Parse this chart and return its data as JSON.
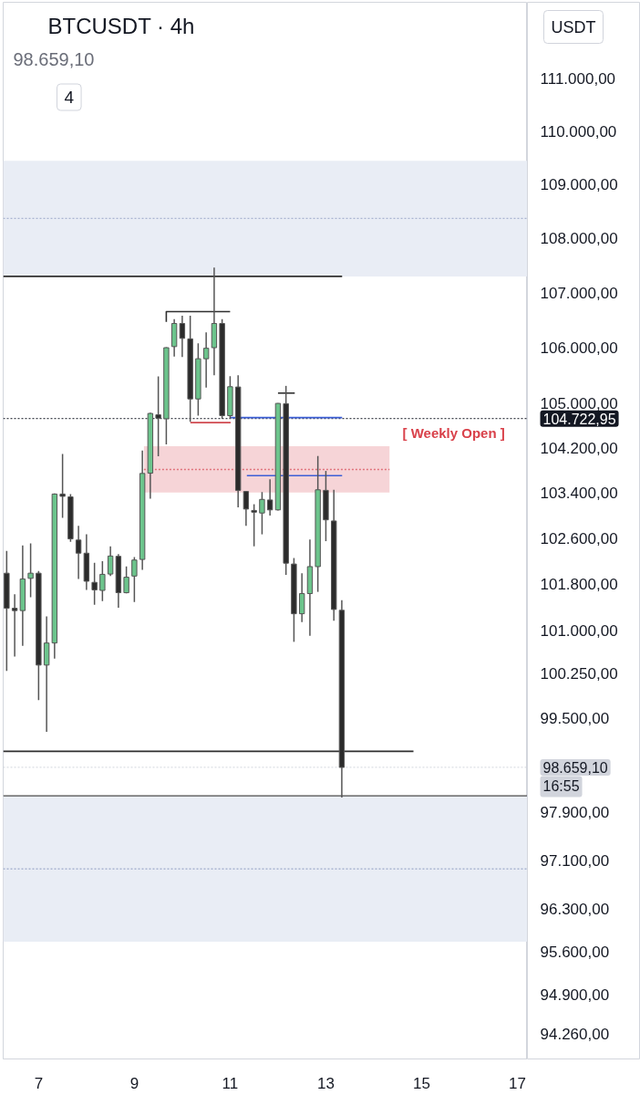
{
  "chart_data": {
    "type": "candlestick",
    "title": "BTCUSDT · 4h",
    "subtitle": "98.659,10",
    "x": [
      6.333,
      6.5,
      6.667,
      6.833,
      7,
      7.167,
      7.333,
      7.5,
      7.667,
      7.833,
      8,
      8.167,
      8.333,
      8.5,
      8.667,
      8.833,
      9,
      9.167,
      9.333,
      9.5,
      9.667,
      9.833,
      10,
      10.167,
      10.333,
      10.5,
      10.667,
      10.833,
      11,
      11.167,
      11.333,
      11.5,
      11.667,
      11.833,
      12,
      12.167,
      12.333,
      12.5,
      12.667,
      12.833,
      13,
      13.167,
      13.333
    ],
    "ohlc": [
      [
        101990,
        102380,
        100300,
        101380
      ],
      [
        101380,
        101625,
        100545,
        101340
      ],
      [
        101340,
        102475,
        100730,
        101890
      ],
      [
        101900,
        102510,
        101570,
        101990
      ],
      [
        101990,
        102030,
        99800,
        100400
      ],
      [
        100400,
        101240,
        99260,
        100780
      ],
      [
        100780,
        103390,
        100510,
        103380
      ],
      [
        103380,
        104090,
        102960,
        103340
      ],
      [
        103330,
        103380,
        102540,
        102590
      ],
      [
        102570,
        102820,
        101890,
        102340
      ],
      [
        102340,
        102670,
        101700,
        101850
      ],
      [
        101830,
        102170,
        101440,
        101700
      ],
      [
        101690,
        102200,
        101505,
        101970
      ],
      [
        101975,
        102460,
        101940,
        102290
      ],
      [
        102285,
        102325,
        101390,
        101650
      ],
      [
        101650,
        102110,
        101640,
        101920
      ],
      [
        101940,
        102270,
        101490,
        102220
      ],
      [
        102230,
        104150,
        102050,
        103745
      ],
      [
        103750,
        104830,
        103300,
        104815
      ],
      [
        104790,
        105480,
        104050,
        104730
      ],
      [
        104720,
        106010,
        104260,
        106000
      ],
      [
        106020,
        106520,
        105840,
        106440
      ],
      [
        106440,
        106580,
        105830,
        106170
      ],
      [
        106160,
        106580,
        104665,
        105075
      ],
      [
        105075,
        106080,
        104775,
        105800
      ],
      [
        105800,
        106280,
        105280,
        105990
      ],
      [
        106000,
        107460,
        105500,
        106440
      ],
      [
        106440,
        106520,
        104720,
        104775
      ],
      [
        104775,
        105485,
        104720,
        105295
      ],
      [
        105290,
        105500,
        103145,
        103445
      ],
      [
        103425,
        103430,
        102820,
        103115
      ],
      [
        103090,
        103200,
        102460,
        103060
      ],
      [
        103045,
        103415,
        102670,
        103285
      ],
      [
        103275,
        103640,
        103000,
        103100
      ],
      [
        103100,
        105000,
        103090,
        104995
      ],
      [
        104990,
        105310,
        101960,
        102165
      ],
      [
        102150,
        102255,
        100800,
        101285
      ],
      [
        101285,
        101990,
        101140,
        101635
      ],
      [
        101635,
        102580,
        100905,
        102105
      ],
      [
        102105,
        104055,
        101665,
        103455
      ],
      [
        103445,
        103790,
        102550,
        102925
      ],
      [
        102905,
        103455,
        101165,
        101360
      ],
      [
        101345,
        101520,
        98150,
        98659.1
      ]
    ],
    "colors": [
      "#2b2b2b",
      "#2b2b2b",
      "#6cc48c",
      "#6cc48c",
      "#2b2b2b",
      "#6cc48c",
      "#6cc48c",
      "#2b2b2b",
      "#2b2b2b",
      "#2b2b2b",
      "#2b2b2b",
      "#2b2b2b",
      "#6cc48c",
      "#6cc48c",
      "#2b2b2b",
      "#6cc48c",
      "#6cc48c",
      "#6cc48c",
      "#6cc48c",
      "#2b2b2b",
      "#6cc48c",
      "#6cc48c",
      "#2b2b2b",
      "#2b2b2b",
      "#6cc48c",
      "#6cc48c",
      "#6cc48c",
      "#2b2b2b",
      "#6cc48c",
      "#2b2b2b",
      "#2b2b2b",
      "#2b2b2b",
      "#6cc48c",
      "#2b2b2b",
      "#6cc48c",
      "#2b2b2b",
      "#2b2b2b",
      "#6cc48c",
      "#6cc48c",
      "#6cc48c",
      "#2b2b2b",
      "#2b2b2b",
      "#2b2b2b"
    ],
    "series": [
      {
        "type": "line",
        "x": [
          6.26,
          13.34
        ],
        "values": [
          107300,
          107300
        ],
        "color": "#2f2f2f"
      },
      {
        "type": "line",
        "x": [
          9.667,
          9.667,
          11.0
        ],
        "values": [
          106470,
          106655,
          106655
        ],
        "color": "#2f2f2f"
      },
      {
        "type": "line",
        "x": [
          10.17,
          11.01
        ],
        "values": [
          104650,
          104650
        ],
        "color": "#d0494f"
      },
      {
        "type": "line",
        "x": [
          11.0,
          13.34
        ],
        "values": [
          104740,
          104740
        ],
        "color": "#3d5fd6"
      },
      {
        "type": "line",
        "x": [
          11.35,
          13.34
        ],
        "values": [
          103705,
          103705
        ],
        "color": "#3d5fd6"
      },
      {
        "type": "line",
        "x": [
          12.0,
          12.35
        ],
        "values": [
          105180,
          105180
        ],
        "color": "#2f2f2f"
      },
      {
        "type": "line",
        "x": [
          6.26,
          14.83
        ],
        "values": [
          98930,
          98930
        ],
        "color": "#2f2f2f"
      },
      {
        "type": "line",
        "x": [
          9.2,
          14.33
        ],
        "values": [
          103815,
          103815
        ],
        "lower": [
          103405,
          103405
        ],
        "upper": [
          104230,
          104230
        ],
        "color": "#e0717a",
        "line_style": "dotted"
      }
    ],
    "bands": [
      {
        "axis": "y",
        "from": 107300,
        "to": 109440,
        "color": "#e9edf5"
      },
      {
        "axis": "y",
        "from": 95760,
        "to": 98180,
        "color": "#e9edf5"
      }
    ],
    "ref_lines": [
      {
        "axis": "y",
        "value": 108370,
        "color": "#9aa6c8",
        "line_style": "dotted"
      },
      {
        "axis": "y",
        "value": 96960,
        "color": "#9aa6c8",
        "line_style": "dotted"
      },
      {
        "axis": "y",
        "value": 98180,
        "color": "#4a4a4a"
      },
      {
        "axis": "y",
        "value": 104722.95,
        "label": "104.722,95",
        "color": "#131722",
        "line_style": "dotted"
      },
      {
        "axis": "y",
        "value": 98659.1,
        "label": "98.659,10\n16:55",
        "color": "#d1d4dc",
        "line_style": "dotted"
      }
    ],
    "annotations": [
      {
        "text": "[ Weekly Open ]",
        "x": 15.67,
        "y": 104722.95
      },
      "4",
      "USDT"
    ],
    "xlim": [
      6.26,
      17.21
    ],
    "xticks": [
      7,
      9,
      11,
      13,
      15,
      17
    ],
    "ylim": [
      93860,
      112450
    ],
    "yticks": [
      {
        "value": 111000,
        "label": "111.000,00"
      },
      {
        "value": 110000,
        "label": "110.000,00"
      },
      {
        "value": 109000,
        "label": "109.000,00"
      },
      {
        "value": 108000,
        "label": "108.000,00"
      },
      {
        "value": 107000,
        "label": "107.000,00"
      },
      {
        "value": 106000,
        "label": "106.000,00"
      },
      {
        "value": 105000,
        "label": "105.000,00"
      },
      {
        "value": 104200,
        "label": "104.200,00"
      },
      {
        "value": 103400,
        "label": "103.400,00"
      },
      {
        "value": 102600,
        "label": "102.600,00"
      },
      {
        "value": 101800,
        "label": "101.800,00"
      },
      {
        "value": 101000,
        "label": "101.000,00"
      },
      {
        "value": 100250,
        "label": "100.250,00"
      },
      {
        "value": 99500,
        "label": "99.500,00"
      },
      {
        "value": 97900,
        "label": "97.900,00"
      },
      {
        "value": 97100,
        "label": "97.100,00"
      },
      {
        "value": 96300,
        "label": "96.300,00"
      },
      {
        "value": 95600,
        "label": "95.600,00"
      },
      {
        "value": 94900,
        "label": "94.900,00"
      },
      {
        "value": 94260,
        "label": "94.260,00"
      }
    ],
    "log": true,
    "grid": false
  }
}
